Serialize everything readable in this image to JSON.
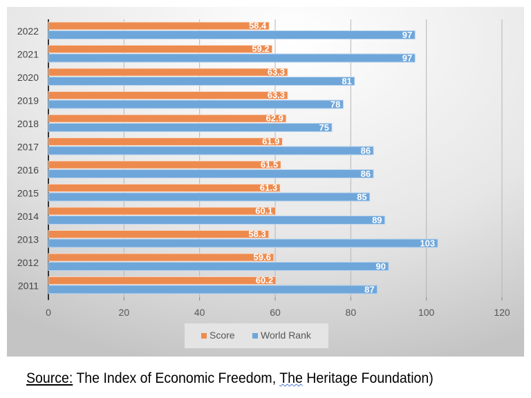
{
  "chart_data": {
    "type": "bar",
    "orientation": "horizontal",
    "categories": [
      "2022",
      "2021",
      "2020",
      "2019",
      "2018",
      "2017",
      "2016",
      "2015",
      "2014",
      "2013",
      "2012",
      "2011"
    ],
    "series": [
      {
        "name": "Score",
        "color": "#ed8b4f",
        "values": [
          58.4,
          59.2,
          63.3,
          63.3,
          62.9,
          61.9,
          61.5,
          61.3,
          60.1,
          58.3,
          59.6,
          60.2
        ]
      },
      {
        "name": "World Rank",
        "color": "#6fa6da",
        "values": [
          97,
          97,
          81,
          78,
          75,
          86,
          86,
          85,
          89,
          103,
          90,
          87
        ]
      }
    ],
    "xlim": [
      0,
      120
    ],
    "xticks": [
      "0",
      "20",
      "40",
      "60",
      "80",
      "100",
      "120"
    ],
    "grid": true,
    "legend": "bottom"
  },
  "source": {
    "label": "Source:",
    "part1": " The Index of Economic Freedom, ",
    "the": "The",
    "part2": " Heritage Foundation)"
  }
}
